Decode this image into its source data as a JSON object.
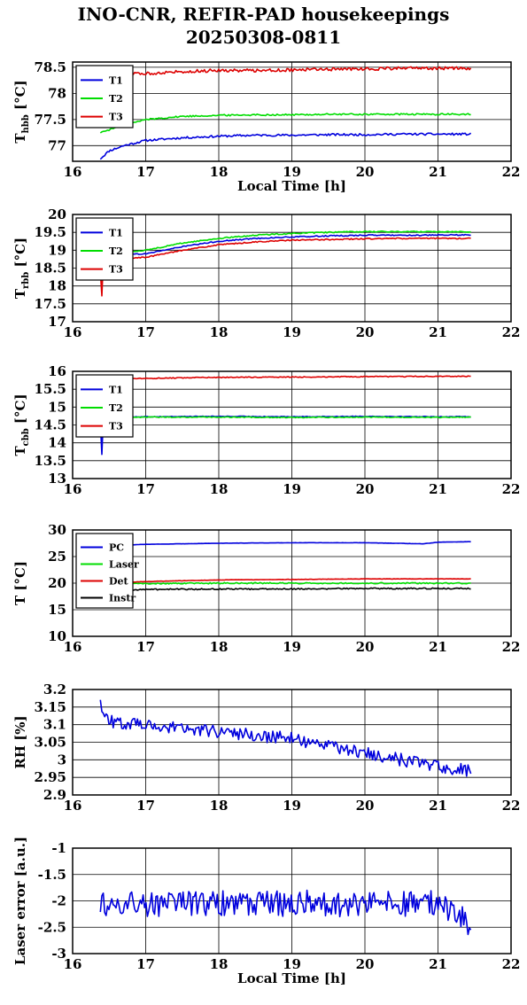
{
  "title": {
    "line1": "INO-CNR, REFIR-PAD housekeepings",
    "line2": "20250308-0811"
  },
  "colors": {
    "blue": "#0000dd",
    "green": "#00dd00",
    "red": "#dd0000",
    "black": "#000000"
  },
  "chart_data": [
    {
      "type": "line",
      "ylabel": "T_hbb [°C]",
      "ylabel_main": "T",
      "ylabel_sub": "hbb",
      "ylabel_unit": " [°C]",
      "xlabel": "Local Time [h]",
      "xlim": [
        16,
        22
      ],
      "ylim": [
        76.7,
        78.6
      ],
      "xticks": [
        "16",
        "17",
        "18",
        "19",
        "20",
        "21",
        "22"
      ],
      "yticks": [
        "77",
        "77.5",
        "78",
        "78.5"
      ],
      "ytick_values": [
        77,
        77.5,
        78,
        78.5
      ],
      "grid": true,
      "legend": "top-left",
      "series": [
        {
          "name": "T1",
          "color": "#0000dd",
          "x": [
            16.38,
            16.5,
            16.7,
            17.0,
            17.5,
            18.0,
            18.5,
            19.0,
            19.5,
            20.0,
            20.5,
            21.0,
            21.45
          ],
          "y": [
            76.75,
            76.9,
            77.0,
            77.1,
            77.15,
            77.18,
            77.2,
            77.2,
            77.21,
            77.21,
            77.22,
            77.22,
            77.22
          ],
          "noise": 0.02
        },
        {
          "name": "T2",
          "color": "#00dd00",
          "x": [
            16.38,
            16.6,
            17.0,
            17.5,
            18.0,
            18.5,
            19.0,
            19.5,
            20.0,
            20.5,
            21.0,
            21.45
          ],
          "y": [
            77.25,
            77.35,
            77.5,
            77.56,
            77.58,
            77.59,
            77.59,
            77.6,
            77.6,
            77.6,
            77.6,
            77.6
          ],
          "noise": 0.015
        },
        {
          "name": "T3",
          "color": "#dd0000",
          "x": [
            16.38,
            16.5,
            17.0,
            17.5,
            18.0,
            18.5,
            19.0,
            19.5,
            20.0,
            20.5,
            21.0,
            21.45
          ],
          "y": [
            78.45,
            78.35,
            78.38,
            78.42,
            78.44,
            78.44,
            78.45,
            78.46,
            78.47,
            78.48,
            78.48,
            78.48
          ],
          "noise": 0.03
        }
      ]
    },
    {
      "type": "line",
      "ylabel": "T_rbb [°C]",
      "ylabel_main": "T",
      "ylabel_sub": "rbb",
      "ylabel_unit": " [°C]",
      "xlabel": "",
      "xlim": [
        16,
        22
      ],
      "ylim": [
        17,
        20
      ],
      "xticks": [
        "16",
        "17",
        "18",
        "19",
        "20",
        "21",
        "22"
      ],
      "yticks": [
        "17",
        "17.5",
        "18",
        "18.5",
        "19",
        "19.5",
        "20"
      ],
      "ytick_values": [
        17,
        17.5,
        18,
        18.5,
        19,
        19.5,
        20
      ],
      "grid": true,
      "legend": "top-left",
      "series": [
        {
          "name": "T1",
          "color": "#0000dd",
          "x": [
            16.38,
            16.4,
            16.42,
            17.0,
            17.5,
            18.0,
            18.5,
            19.0,
            19.5,
            20.0,
            20.5,
            21.0,
            21.45
          ],
          "y": [
            18.5,
            17.9,
            18.85,
            18.9,
            19.1,
            19.25,
            19.33,
            19.37,
            19.4,
            19.42,
            19.42,
            19.42,
            19.43
          ],
          "noise": 0.015
        },
        {
          "name": "T2",
          "color": "#00dd00",
          "x": [
            16.38,
            16.4,
            16.42,
            17.0,
            17.5,
            18.0,
            18.5,
            19.0,
            19.5,
            20.0,
            20.5,
            21.0,
            21.45
          ],
          "y": [
            18.6,
            18.0,
            18.9,
            19.0,
            19.2,
            19.33,
            19.42,
            19.47,
            19.5,
            19.52,
            19.52,
            19.52,
            19.52
          ],
          "noise": 0.015
        },
        {
          "name": "T3",
          "color": "#dd0000",
          "x": [
            16.38,
            16.4,
            16.42,
            17.0,
            17.5,
            18.0,
            18.5,
            19.0,
            19.5,
            20.0,
            20.5,
            21.0,
            21.45
          ],
          "y": [
            18.4,
            17.7,
            18.75,
            18.8,
            19.0,
            19.15,
            19.23,
            19.28,
            19.3,
            19.32,
            19.33,
            19.33,
            19.33
          ],
          "noise": 0.015
        }
      ]
    },
    {
      "type": "line",
      "ylabel": "T_cbb [°C]",
      "ylabel_main": "T",
      "ylabel_sub": "cbb",
      "ylabel_unit": " [°C]",
      "xlabel": "",
      "xlim": [
        16,
        22
      ],
      "ylim": [
        13,
        16
      ],
      "xticks": [
        "16",
        "17",
        "18",
        "19",
        "20",
        "21",
        "22"
      ],
      "yticks": [
        "13",
        "13.5",
        "14",
        "14.5",
        "15",
        "15.5",
        "16"
      ],
      "ytick_values": [
        13,
        13.5,
        14,
        14.5,
        15,
        15.5,
        16
      ],
      "grid": true,
      "legend": "top-left",
      "series": [
        {
          "name": "T1",
          "color": "#0000dd",
          "x": [
            16.38,
            16.4,
            16.42,
            16.5,
            17.0,
            18.0,
            19.0,
            20.0,
            21.0,
            21.45
          ],
          "y": [
            14.6,
            13.65,
            14.72,
            14.72,
            14.73,
            14.74,
            14.73,
            14.74,
            14.73,
            14.73
          ],
          "noise": 0.01
        },
        {
          "name": "T2",
          "color": "#00dd00",
          "x": [
            16.38,
            16.4,
            16.42,
            16.5,
            17.0,
            18.0,
            19.0,
            20.0,
            21.0,
            21.45
          ],
          "y": [
            14.5,
            14.4,
            14.7,
            14.72,
            14.72,
            14.72,
            14.71,
            14.72,
            14.71,
            14.72
          ],
          "noise": 0.012
        },
        {
          "name": "T3",
          "color": "#dd0000",
          "x": [
            16.38,
            16.5,
            17.0,
            17.5,
            18.0,
            19.0,
            20.0,
            21.0,
            21.45
          ],
          "y": [
            15.75,
            15.78,
            15.8,
            15.82,
            15.83,
            15.84,
            15.85,
            15.86,
            15.86
          ],
          "noise": 0.012
        }
      ]
    },
    {
      "type": "line",
      "ylabel": "T [°C]",
      "ylabel_main": "T [°C]",
      "ylabel_sub": "",
      "ylabel_unit": "",
      "xlabel": "",
      "xlim": [
        16,
        22
      ],
      "ylim": [
        10,
        30
      ],
      "xticks": [
        "16",
        "17",
        "18",
        "19",
        "20",
        "21",
        "22"
      ],
      "yticks": [
        "10",
        "15",
        "20",
        "25",
        "30"
      ],
      "ytick_values": [
        10,
        15,
        20,
        25,
        30
      ],
      "grid": true,
      "legend": "top-left",
      "series": [
        {
          "name": "PC",
          "color": "#0000dd",
          "x": [
            16.38,
            16.6,
            17.0,
            17.5,
            18.0,
            19.0,
            20.0,
            20.8,
            21.0,
            21.45
          ],
          "y": [
            27.0,
            27.1,
            27.3,
            27.4,
            27.5,
            27.6,
            27.6,
            27.4,
            27.7,
            27.8
          ],
          "noise": 0.02
        },
        {
          "name": "Laser",
          "color": "#00dd00",
          "x": [
            16.38,
            17.0,
            18.0,
            19.0,
            20.0,
            21.0,
            21.45
          ],
          "y": [
            19.8,
            19.9,
            20.0,
            20.0,
            20.0,
            20.0,
            20.0
          ],
          "noise": 0.12
        },
        {
          "name": "Det",
          "color": "#dd0000",
          "x": [
            16.38,
            17.0,
            18.0,
            19.0,
            20.0,
            21.0,
            21.45
          ],
          "y": [
            20.0,
            20.3,
            20.6,
            20.7,
            20.8,
            20.8,
            20.8
          ],
          "noise": 0.03
        },
        {
          "name": "Instr",
          "color": "#000000",
          "x": [
            16.38,
            17.0,
            18.0,
            19.0,
            20.0,
            21.0,
            21.45
          ],
          "y": [
            18.6,
            18.8,
            18.9,
            18.9,
            19.0,
            19.0,
            19.0
          ],
          "noise": 0.12
        }
      ]
    },
    {
      "type": "line",
      "ylabel": "RH [%]",
      "ylabel_main": "RH [%]",
      "ylabel_sub": "",
      "ylabel_unit": "",
      "xlabel": "",
      "xlim": [
        16,
        22
      ],
      "ylim": [
        2.9,
        3.2
      ],
      "xticks": [
        "16",
        "17",
        "18",
        "19",
        "20",
        "21",
        "22"
      ],
      "yticks": [
        "2.9",
        "2.95",
        "3",
        "3.05",
        "3.1",
        "3.15",
        "3.2"
      ],
      "ytick_values": [
        2.9,
        2.95,
        3.0,
        3.05,
        3.1,
        3.15,
        3.2
      ],
      "grid": true,
      "legend": "none",
      "series": [
        {
          "name": "",
          "color": "#0000dd",
          "x": [
            16.38,
            16.5,
            17.0,
            17.5,
            18.0,
            18.5,
            19.0,
            19.5,
            20.0,
            20.5,
            21.0,
            21.45
          ],
          "y": [
            3.16,
            3.11,
            3.1,
            3.09,
            3.08,
            3.07,
            3.06,
            3.04,
            3.02,
            3.0,
            2.98,
            2.97
          ],
          "noise": 0.018
        }
      ]
    },
    {
      "type": "line",
      "ylabel": "Laser error [a.u.]",
      "ylabel_main": "Laser error [a.u.]",
      "ylabel_sub": "",
      "ylabel_unit": "",
      "xlabel": "Local Time [h]",
      "xlim": [
        16,
        22
      ],
      "ylim": [
        -3,
        -1
      ],
      "xticks": [
        "16",
        "17",
        "18",
        "19",
        "20",
        "21",
        "22"
      ],
      "yticks": [
        "-3",
        "-2.5",
        "-2",
        "-1.5",
        "-1"
      ],
      "ytick_values": [
        -3,
        -2.5,
        -2,
        -1.5,
        -1
      ],
      "grid": true,
      "legend": "none",
      "series": [
        {
          "name": "",
          "color": "#0000dd",
          "x": [
            16.38,
            17.0,
            18.0,
            19.0,
            20.0,
            21.0,
            21.45
          ],
          "y": [
            -2.05,
            -2.05,
            -2.05,
            -2.05,
            -2.05,
            -2.05,
            -2.45
          ],
          "noise": 0.25
        }
      ]
    }
  ]
}
